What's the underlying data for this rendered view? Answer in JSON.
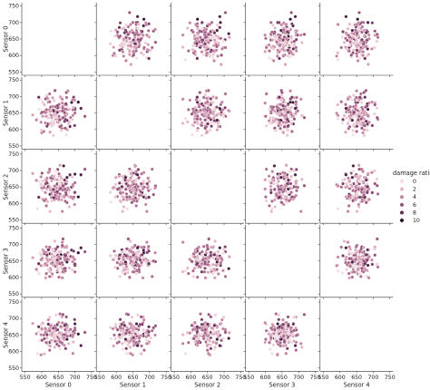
{
  "chart_data": {
    "type": "scatter",
    "kind": "pairplot",
    "variables": [
      "Sensor 0",
      "Sensor 1",
      "Sensor 2",
      "Sensor 3",
      "Sensor 4"
    ],
    "hue": "damage rating",
    "hue_levels": [
      0,
      1,
      2,
      3,
      4,
      5,
      6,
      7,
      8,
      9,
      10
    ],
    "legend_entries": [
      "0",
      "2",
      "4",
      "6",
      "8",
      "10"
    ],
    "legend_values": [
      0,
      2,
      4,
      6,
      8,
      10
    ],
    "legend_placement": "center-right",
    "palette": [
      "#f4dde2",
      "#eccbd4",
      "#e2b6c6",
      "#d49db2",
      "#c2829f",
      "#ac688c",
      "#955079",
      "#7c3b67",
      "#612b55",
      "#451c40",
      "#2c0f2b"
    ],
    "diagonal": "empty",
    "x_ticks": [
      550,
      600,
      650,
      700,
      750
    ],
    "y_ticks": [
      550,
      600,
      650,
      700,
      750
    ],
    "xlim": [
      540,
      760
    ],
    "ylim": [
      540,
      760
    ],
    "grid": false,
    "n_points": 150,
    "columns": {
      "sensor_0": [
        658,
        690,
        602,
        625,
        674,
        616,
        608,
        687,
        685,
        612,
        710,
        646,
        666,
        692,
        699,
        630,
        633,
        640,
        633,
        618,
        653,
        595,
        598,
        661,
        682,
        659,
        700,
        647,
        694,
        635,
        630,
        573,
        668,
        667,
        655,
        662,
        700,
        662,
        606,
        681,
        663,
        587,
        631,
        643,
        612,
        636,
        603,
        674,
        630,
        643,
        616,
        648,
        695,
        696,
        645,
        627,
        683,
        618,
        653,
        670,
        614,
        632,
        633,
        616,
        648,
        601,
        616,
        640,
        624,
        584,
        699,
        670,
        623,
        674,
        615,
        655,
        676,
        652,
        663,
        677,
        629,
        638,
        645,
        636,
        647,
        603,
        693,
        718,
        641,
        652,
        643,
        635,
        660,
        671,
        671,
        624,
        608,
        620,
        656,
        620,
        730,
        632,
        664,
        624,
        636,
        600,
        599,
        614,
        674,
        620,
        641,
        647,
        654,
        679,
        646,
        656,
        662,
        616,
        647,
        673,
        653,
        643,
        694,
        598,
        625,
        626,
        671,
        638,
        675,
        669,
        625,
        651,
        661,
        639,
        676,
        638,
        612,
        611,
        672,
        677,
        657,
        659,
        700,
        631,
        675,
        656,
        591,
        641,
        681,
        592
      ],
      "sensor_1": [
        612,
        682,
        641,
        657,
        584,
        704,
        675,
        636,
        609,
        640,
        683,
        659,
        657,
        630,
        612,
        613,
        696,
        718,
        643,
        694,
        667,
        691,
        649,
        681,
        662,
        695,
        661,
        656,
        660,
        582,
        611,
        644,
        653,
        634,
        631,
        680,
        664,
        656,
        594,
        618,
        669,
        633,
        640,
        665,
        693,
        622,
        682,
        675,
        636,
        632,
        660,
        666,
        667,
        698,
        633,
        668,
        623,
        614,
        609,
        676,
        653,
        670,
        621,
        696,
        656,
        652,
        612,
        653,
        647,
        629,
        689,
        650,
        660,
        661,
        640,
        656,
        647,
        676,
        665,
        599,
        643,
        649,
        650,
        616,
        622,
        640,
        690,
        664,
        645,
        640,
        650,
        659,
        632,
        641,
        662,
        708,
        653,
        683,
        699,
        635,
        640,
        626,
        636,
        684,
        656,
        590,
        598,
        660,
        712,
        617,
        645,
        672,
        629,
        717,
        653,
        608,
        692,
        610,
        652,
        678,
        620,
        638,
        643,
        622,
        619,
        655,
        604,
        688,
        697,
        625,
        592,
        622,
        603,
        642,
        628,
        647,
        651,
        620,
        630,
        662,
        619,
        597,
        650,
        626,
        648,
        619,
        698,
        669,
        666,
        661
      ],
      "sensor_2": [
        644,
        650,
        638,
        628,
        604,
        643,
        653,
        620,
        687,
        672,
        620,
        616,
        714,
        680,
        633,
        631,
        652,
        653,
        676,
        648,
        652,
        619,
        657,
        661,
        641,
        676,
        689,
        633,
        657,
        634,
        608,
        691,
        620,
        652,
        629,
        644,
        634,
        649,
        648,
        621,
        641,
        584,
        622,
        674,
        660,
        620,
        668,
        660,
        669,
        619,
        672,
        703,
        614,
        619,
        656,
        678,
        590,
        605,
        683,
        624,
        668,
        639,
        649,
        677,
        622,
        692,
        608,
        633,
        699,
        670,
        597,
        643,
        697,
        669,
        646,
        716,
        603,
        690,
        651,
        679,
        618,
        612,
        647,
        644,
        672,
        613,
        616,
        687,
        639,
        620,
        636,
        643,
        611,
        639,
        607,
        704,
        609,
        694,
        667,
        660,
        704,
        683,
        654,
        650,
        618,
        647,
        658,
        593,
        627,
        651,
        634,
        636,
        643,
        647,
        622,
        646,
        576,
        662,
        660,
        633,
        661,
        698,
        653,
        681,
        576,
        641,
        643,
        626,
        639,
        671,
        649,
        612,
        621,
        673,
        679,
        683,
        613,
        633,
        660,
        638,
        682,
        620,
        663,
        652,
        666,
        670,
        619,
        625,
        634,
        667
      ],
      "sensor_3": [
        669,
        683,
        652,
        672,
        666,
        649,
        637,
        663,
        665,
        599,
        675,
        640,
        627,
        623,
        640,
        643,
        686,
        648,
        656,
        651,
        678,
        674,
        636,
        692,
        655,
        641,
        637,
        617,
        663,
        666,
        603,
        660,
        661,
        616,
        632,
        599,
        641,
        697,
        680,
        659,
        617,
        620,
        683,
        640,
        676,
        643,
        659,
        668,
        672,
        687,
        674,
        693,
        658,
        680,
        659,
        624,
        629,
        647,
        659,
        692,
        693,
        660,
        654,
        637,
        630,
        657,
        663,
        638,
        686,
        625,
        655,
        654,
        621,
        671,
        657,
        663,
        649,
        645,
        639,
        666,
        643,
        663,
        656,
        660,
        621,
        684,
        648,
        690,
        651,
        601,
        656,
        646,
        628,
        657,
        620,
        603,
        672,
        653,
        639,
        624,
        678,
        611,
        717,
        692,
        638,
        654,
        668,
        612,
        650,
        684,
        678,
        653,
        641,
        675,
        643,
        657,
        707,
        668,
        669,
        669,
        634,
        674,
        662,
        654,
        618,
        628,
        628,
        649,
        694,
        669,
        654,
        663,
        645,
        710,
        647,
        639,
        676,
        642,
        666,
        655,
        678,
        631,
        617,
        679,
        691,
        614,
        642,
        634,
        669,
        612
      ],
      "sensor_4": [
        675,
        648,
        666,
        628,
        639,
        641,
        593,
        667,
        649,
        628,
        653,
        622,
        640,
        657,
        697,
        671,
        631,
        678,
        657,
        664,
        629,
        634,
        590,
        705,
        662,
        656,
        684,
        648,
        650,
        673,
        682,
        685,
        619,
        636,
        714,
        687,
        666,
        651,
        650,
        624,
        641,
        594,
        650,
        711,
        658,
        664,
        665,
        705,
        657,
        664,
        628,
        666,
        629,
        660,
        632,
        677,
        657,
        663,
        645,
        648,
        628,
        648,
        658,
        625,
        642,
        634,
        641,
        649,
        704,
        654,
        656,
        652,
        669,
        657,
        660,
        657,
        679,
        617,
        622,
        673,
        633,
        647,
        678,
        643,
        682,
        686,
        645,
        618,
        639,
        637,
        651,
        655,
        673,
        684,
        667,
        663,
        639,
        696,
        629,
        620,
        658,
        654,
        712,
        604,
        671,
        669,
        682,
        627,
        672,
        683,
        672,
        682,
        655,
        650,
        638,
        629,
        624,
        651,
        642,
        682,
        649,
        639,
        594,
        651,
        651,
        673,
        666,
        652,
        649,
        679,
        617,
        688,
        626,
        613,
        637,
        661,
        667,
        670,
        609,
        647,
        653,
        639,
        671,
        628,
        671,
        607,
        675,
        631,
        654,
        660
      ],
      "damage_rating": [
        10,
        9,
        0,
        9,
        0,
        1,
        2,
        5,
        8,
        3,
        10,
        6,
        9,
        1,
        7,
        5,
        3,
        6,
        7,
        4,
        2,
        0,
        4,
        3,
        4,
        3,
        9,
        8,
        5,
        1,
        1,
        3,
        4,
        3,
        5,
        4,
        7,
        6,
        5,
        2,
        5,
        0,
        1,
        1,
        7,
        2,
        1,
        6,
        3,
        6,
        2,
        7,
        2,
        7,
        3,
        6,
        2,
        2,
        3,
        4,
        4,
        4,
        2,
        4,
        1,
        6,
        2,
        3,
        1,
        4,
        4,
        7,
        4,
        2,
        3,
        3,
        6,
        5,
        5,
        3,
        4,
        4,
        3,
        1,
        3,
        3,
        4,
        9,
        5,
        5,
        1,
        7,
        3,
        4,
        5,
        5,
        6,
        4,
        3,
        1,
        6,
        4,
        6,
        5,
        8,
        4,
        1,
        5,
        6,
        8,
        5,
        7,
        6,
        4,
        3,
        6,
        4,
        7,
        7,
        7,
        0,
        0,
        4,
        4,
        2,
        3,
        6,
        1,
        5,
        8,
        3,
        4,
        5,
        2,
        9,
        2,
        4,
        4,
        7,
        5,
        2,
        1,
        5,
        0,
        3,
        0,
        8,
        5,
        0,
        0
      ]
    }
  }
}
